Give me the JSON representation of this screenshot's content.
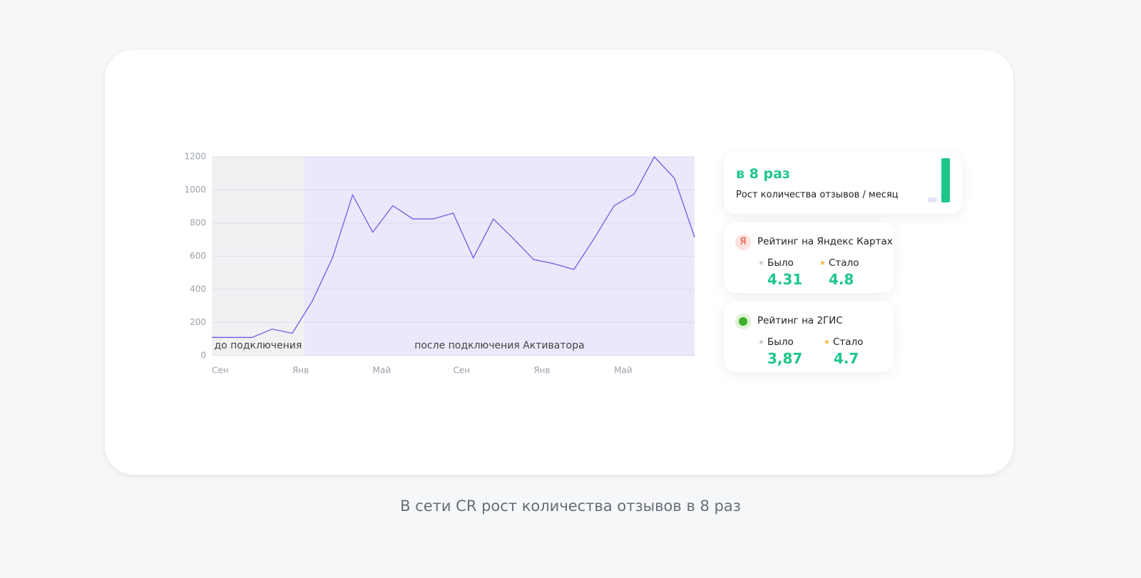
{
  "chart_data": {
    "type": "line",
    "categories": [
      "Сен",
      null,
      null,
      null,
      "Янв",
      null,
      null,
      null,
      "Май",
      null,
      null,
      null,
      "Сен",
      null,
      null,
      null,
      "Янв",
      null,
      null,
      null,
      "Май",
      null,
      null,
      null,
      null
    ],
    "values": [
      110,
      110,
      110,
      160,
      135,
      330,
      590,
      970,
      745,
      905,
      825,
      825,
      860,
      590,
      825,
      705,
      580,
      555,
      520,
      705,
      905,
      975,
      1200,
      1070,
      715
    ],
    "color": "#6a5fe0",
    "ylim": [
      0,
      1200
    ],
    "yticks": [
      0,
      200,
      400,
      600,
      800,
      1000,
      1200
    ],
    "grid": true,
    "annotations": [
      "до подключения",
      "после подключения Активатора"
    ]
  },
  "cards": {
    "growth": {
      "title": "в 8 раз",
      "subtitle": "Рост количества отзывов / месяц"
    },
    "yandex": {
      "icon": "Я",
      "title": "Рейтинг на Яндекс Картах",
      "before_label": "Было",
      "before": "4.31",
      "after_label": "Стало",
      "after": "4.8"
    },
    "gis": {
      "title": "Рейтинг на 2ГИС",
      "before_label": "Было",
      "before": "3,87",
      "after_label": "Стало",
      "after": "4.7"
    }
  },
  "caption": "В сети CR рост количества отзывов в 8 раз"
}
